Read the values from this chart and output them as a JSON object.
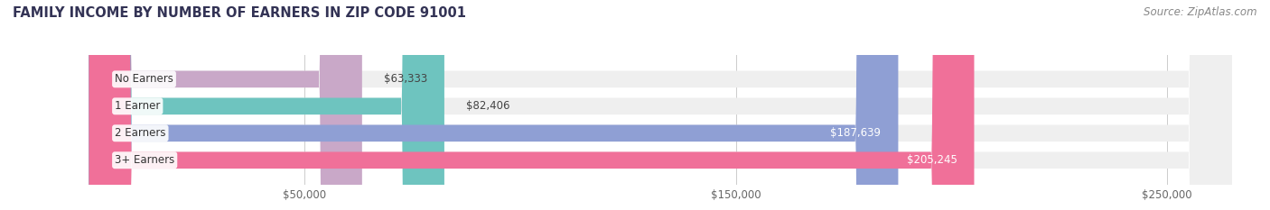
{
  "title": "FAMILY INCOME BY NUMBER OF EARNERS IN ZIP CODE 91001",
  "source": "Source: ZipAtlas.com",
  "categories": [
    "No Earners",
    "1 Earner",
    "2 Earners",
    "3+ Earners"
  ],
  "values": [
    63333,
    82406,
    187639,
    205245
  ],
  "labels": [
    "$63,333",
    "$82,406",
    "$187,639",
    "$205,245"
  ],
  "bar_colors": [
    "#c9a8c8",
    "#6ec4bf",
    "#8f9fd4",
    "#f07099"
  ],
  "bar_bg_color": "#efefef",
  "xlim": [
    0,
    265000
  ],
  "xticks": [
    50000,
    150000,
    250000
  ],
  "xticklabels": [
    "$50,000",
    "$150,000",
    "$250,000"
  ],
  "title_color": "#333355",
  "source_color": "#888888",
  "title_fontsize": 10.5,
  "source_fontsize": 8.5,
  "label_fontsize": 8.5,
  "category_fontsize": 8.5,
  "background_color": "#ffffff"
}
